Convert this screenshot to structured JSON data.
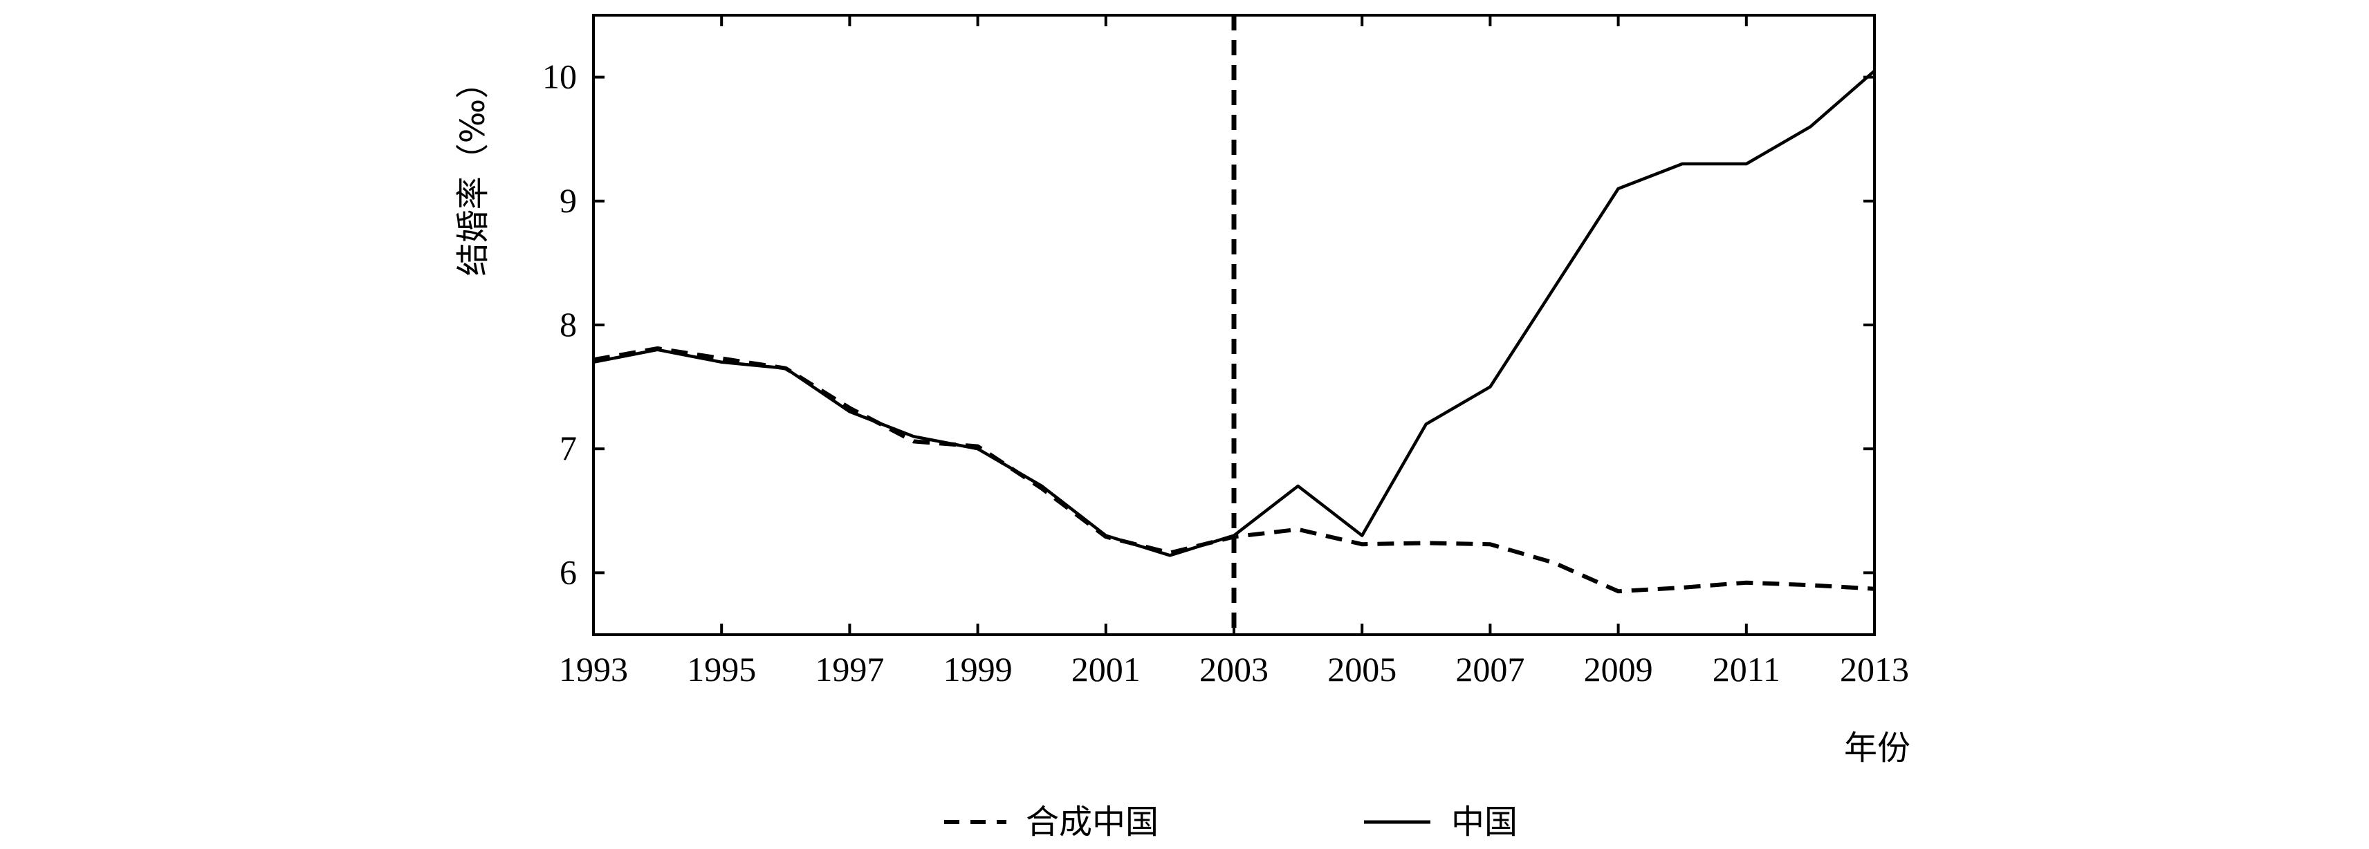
{
  "chart_data": {
    "type": "line",
    "xlabel": "年份",
    "ylabel": "结婚率（‰）",
    "xlim": [
      1993,
      2013
    ],
    "ylim": [
      5.5,
      10.5
    ],
    "x_ticks": [
      "1993",
      "1995",
      "1997",
      "1999",
      "2001",
      "2003",
      "2005",
      "2007",
      "2009",
      "2011",
      "2013"
    ],
    "y_ticks": [
      "6",
      "7",
      "8",
      "9",
      "10"
    ],
    "reference_line_x": 2003,
    "legend_position": "bottom",
    "grid": false,
    "series": [
      {
        "name": "合成中国",
        "style": "dashed",
        "color": "#000000",
        "x": [
          1993,
          1994,
          1995,
          1996,
          1997,
          1998,
          1999,
          2000,
          2001,
          2002,
          2003,
          2004,
          2005,
          2006,
          2007,
          2008,
          2009,
          2010,
          2011,
          2012,
          2013
        ],
        "values": [
          7.72,
          7.81,
          7.73,
          7.65,
          7.33,
          7.06,
          7.02,
          6.68,
          6.29,
          6.16,
          6.29,
          6.35,
          6.23,
          6.24,
          6.23,
          6.08,
          5.85,
          5.88,
          5.92,
          5.9,
          5.87
        ]
      },
      {
        "name": "中国",
        "style": "solid",
        "color": "#000000",
        "x": [
          1993,
          1994,
          1995,
          1996,
          1997,
          1998,
          1999,
          2000,
          2001,
          2002,
          2003,
          2004,
          2005,
          2006,
          2007,
          2008,
          2009,
          2010,
          2011,
          2012,
          2013
        ],
        "values": [
          7.7,
          7.8,
          7.7,
          7.65,
          7.3,
          7.1,
          7.0,
          6.7,
          6.3,
          6.14,
          6.3,
          6.7,
          6.3,
          7.2,
          7.5,
          8.3,
          9.1,
          9.3,
          9.3,
          9.6,
          10.05
        ]
      }
    ]
  }
}
